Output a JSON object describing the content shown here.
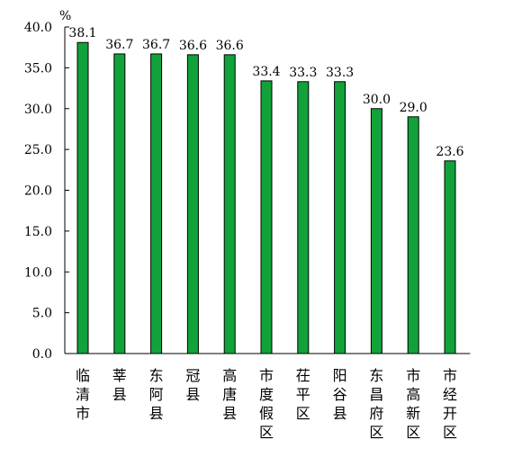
{
  "chart_data": {
    "type": "bar",
    "unit": "%",
    "categories": [
      "临清市",
      "莘县",
      "东阿县",
      "冠县",
      "高唐县",
      "市度假区",
      "茌平区",
      "阳谷县",
      "东昌府区",
      "市高新区",
      "市经开区"
    ],
    "values": [
      38.1,
      36.7,
      36.7,
      36.6,
      36.6,
      33.4,
      33.3,
      33.3,
      30.0,
      29.0,
      23.6
    ],
    "value_labels": [
      "38.1",
      "36.7",
      "36.7",
      "36.6",
      "36.6",
      "33.4",
      "33.3",
      "33.3",
      "30.0",
      "29.0",
      "23.6"
    ],
    "y_ticks": [
      "0.0",
      "5.0",
      "10.0",
      "15.0",
      "20.0",
      "25.0",
      "30.0",
      "35.0",
      "40.0"
    ],
    "ylim": [
      0,
      40
    ],
    "grid": false,
    "colors": {
      "bar": "#12a23a",
      "bar_outline": "#000000"
    }
  }
}
